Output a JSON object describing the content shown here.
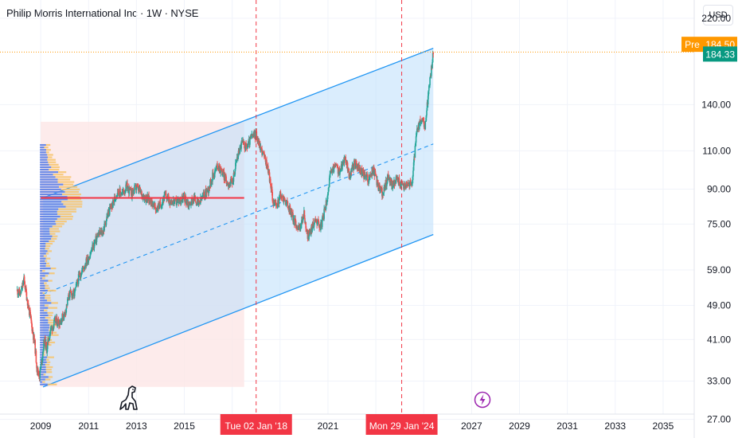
{
  "header": {
    "title": "Philip Morris International Inc · 1W · NYSE",
    "currency": "USD"
  },
  "price_labels": {
    "pre_label": "Pre",
    "pre_price": "184.50",
    "last_price": "184.33"
  },
  "colors": {
    "up": "#26a69a",
    "down": "#ef5350",
    "channel_line": "#2196f3",
    "channel_fill": "#bbdefb",
    "range_fill": "#fde6e6",
    "poc_line": "#f23645",
    "vline": "#f23645",
    "pre_tag": "#ff9800",
    "last_tag": "#089981",
    "vp_up": "#5b7ee5",
    "vp_down": "#f7c46b",
    "event_icon": "#9c27b0"
  },
  "icons": {
    "logo": "dinosaur-logo-icon",
    "event": "lightning-icon"
  },
  "date_tags": [
    "Tue 02 Jan '18",
    "Mon 29 Jan '24"
  ],
  "chart_data": {
    "type": "candlestick",
    "title": "Philip Morris International Inc · 1W · NYSE",
    "x_axis": {
      "range": [
        2007.3,
        2036.3
      ],
      "ticks": [
        "2009",
        "2011",
        "2013",
        "2015",
        "2021",
        "2027",
        "2029",
        "2031",
        "2033",
        "2035"
      ]
    },
    "y_axis": {
      "scale": "log",
      "range": [
        24.5,
        242
      ],
      "ticks": [
        "220.00",
        "140.00",
        "110.00",
        "90.00",
        "75.00",
        "59.00",
        "49.00",
        "41.00",
        "33.00",
        "27.00"
      ]
    },
    "grid": true,
    "series_path": {
      "x": [
        2008.0,
        2008.15,
        2008.3,
        2008.45,
        2008.6,
        2008.75,
        2008.85,
        2008.95,
        2009.05,
        2009.15,
        2009.25,
        2009.4,
        2009.6,
        2009.8,
        2010.0,
        2010.2,
        2010.4,
        2010.6,
        2010.8,
        2011.0,
        2011.2,
        2011.4,
        2011.6,
        2011.8,
        2012.0,
        2012.2,
        2012.4,
        2012.6,
        2012.8,
        2013.0,
        2013.2,
        2013.4,
        2013.6,
        2013.8,
        2014.0,
        2014.2,
        2014.4,
        2014.6,
        2014.8,
        2015.0,
        2015.2,
        2015.4,
        2015.6,
        2015.8,
        2016.0,
        2016.2,
        2016.4,
        2016.6,
        2016.8,
        2017.0,
        2017.2,
        2017.4,
        2017.6,
        2017.8,
        2018.0,
        2018.15,
        2018.3,
        2018.5,
        2018.7,
        2018.85,
        2019.0,
        2019.2,
        2019.4,
        2019.6,
        2019.8,
        2020.0,
        2020.15,
        2020.3,
        2020.5,
        2020.7,
        2020.9,
        2021.1,
        2021.3,
        2021.5,
        2021.7,
        2021.9,
        2022.1,
        2022.3,
        2022.5,
        2022.7,
        2022.9,
        2023.1,
        2023.3,
        2023.5,
        2023.7,
        2023.9,
        2024.1,
        2024.3,
        2024.5,
        2024.7,
        2024.9,
        2025.05,
        2025.2,
        2025.3,
        2025.4
      ],
      "close": [
        53,
        52,
        56,
        50,
        45,
        40,
        35,
        34,
        37,
        41,
        39,
        43,
        45,
        45,
        47,
        52,
        52,
        57,
        60,
        63,
        67,
        71,
        72,
        79,
        83,
        89,
        88,
        91,
        88,
        91,
        88,
        86,
        85,
        81,
        83,
        87,
        85,
        84,
        85,
        86,
        83,
        86,
        83,
        87,
        90,
        97,
        102,
        98,
        93,
        93,
        106,
        115,
        112,
        118,
        120,
        113,
        108,
        100,
        85,
        82,
        87,
        85,
        81,
        76,
        73,
        79,
        70,
        73,
        77,
        74,
        82,
        97,
        102,
        98,
        107,
        96,
        103,
        100,
        97,
        95,
        100,
        91,
        88,
        96,
        92,
        95,
        91,
        93,
        92,
        120,
        130,
        124,
        150,
        165,
        185
      ]
    },
    "channel": {
      "upper": [
        [
          2009.1,
          86
        ],
        [
          2025.4,
          188
        ]
      ],
      "middle": [
        [
          2009.1,
          52
        ],
        [
          2025.4,
          114
        ]
      ],
      "lower": [
        [
          2009.1,
          32
        ],
        [
          2025.4,
          71
        ]
      ]
    },
    "volume_profile_range": {
      "x": [
        2009.0,
        2017.5
      ],
      "y": [
        32,
        128
      ]
    },
    "poc_line": {
      "price": 86,
      "x": [
        2009.0,
        2017.5
      ]
    },
    "vertical_markers": [
      "Tue 02 Jan '18",
      "Mon 29 Jan '24"
    ],
    "last_price": 184.33,
    "pre_market_price": 184.5
  }
}
